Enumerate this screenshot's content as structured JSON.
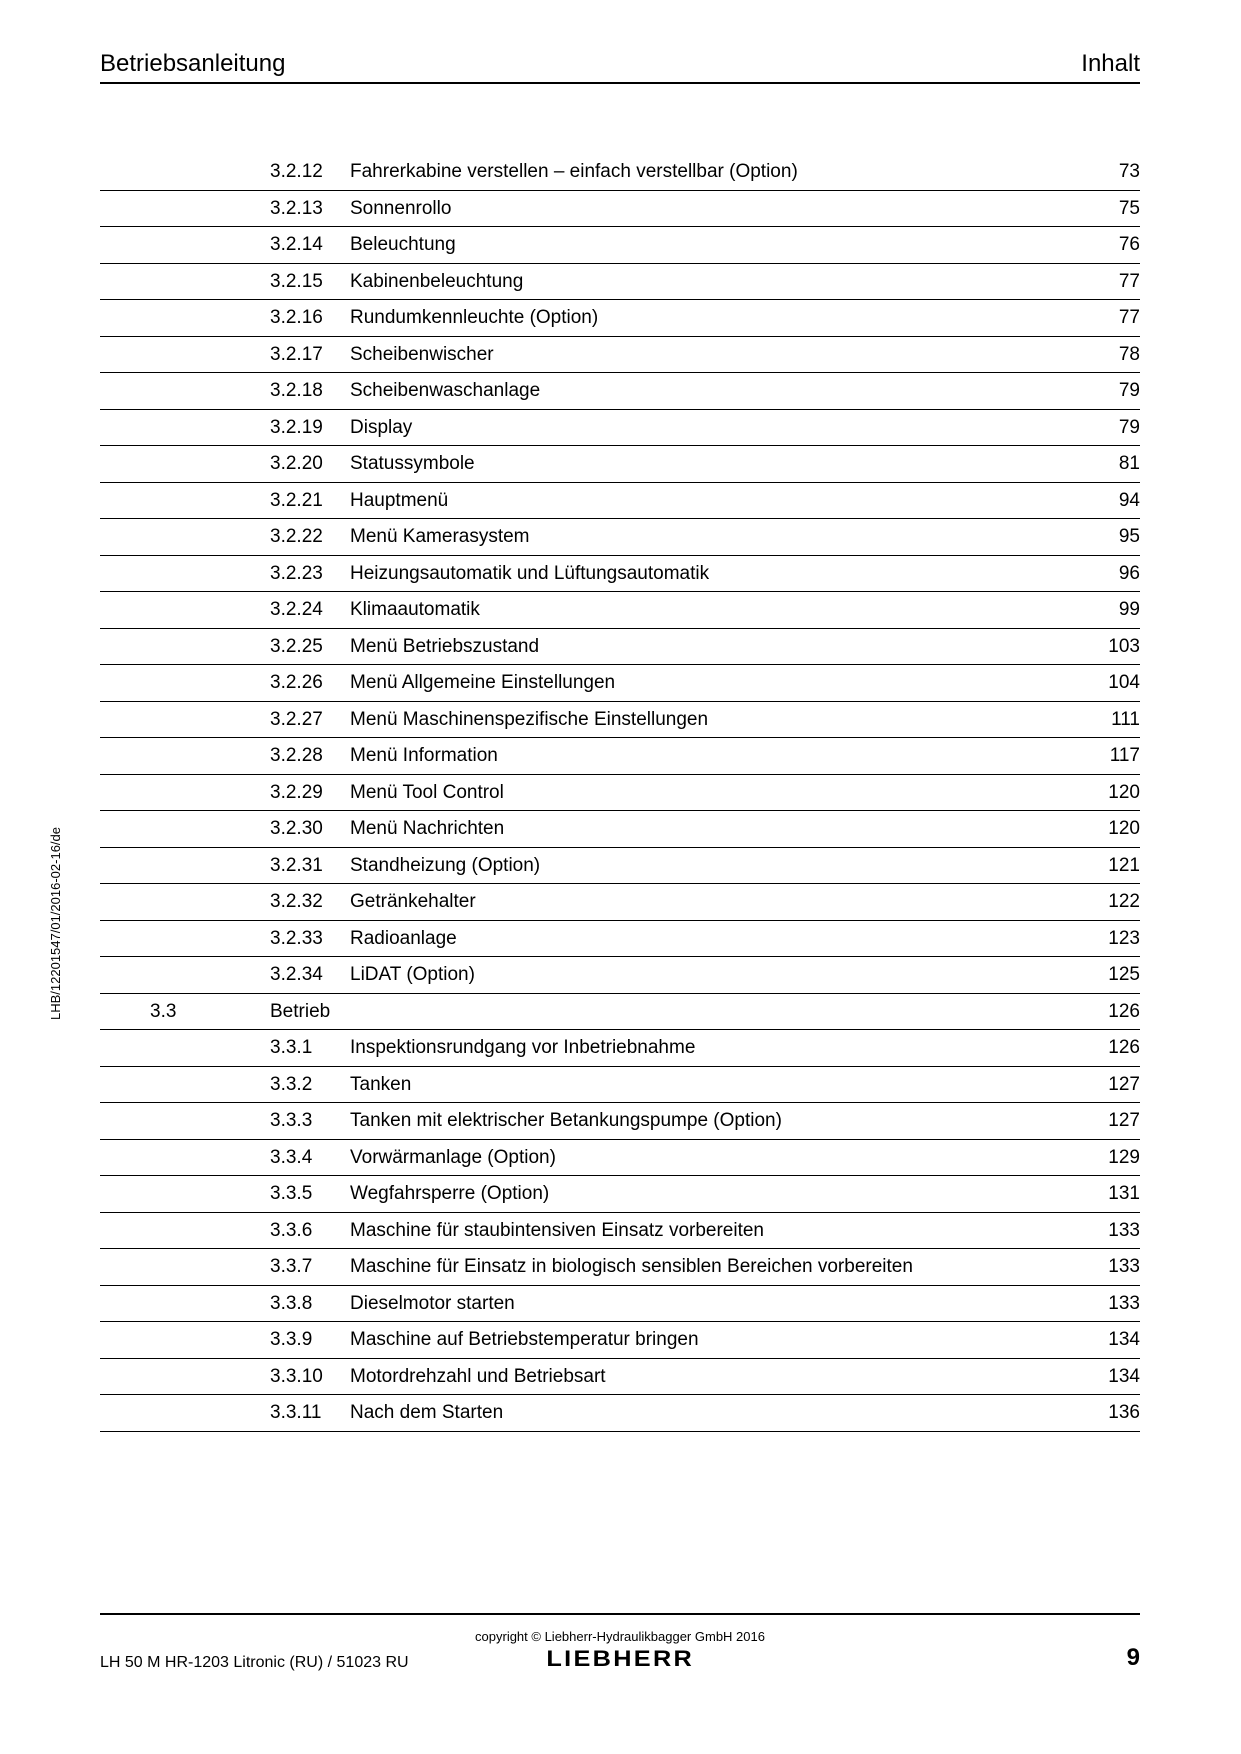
{
  "header": {
    "left": "Betriebsanleitung",
    "right": "Inhalt"
  },
  "side_ref": "LHB/12201547/01/2016-02-16/de",
  "toc": {
    "rows": [
      {
        "section": "",
        "num": "3.2.12",
        "title": "Fahrerkabine verstellen – einfach verstellbar (Option)",
        "page": "73"
      },
      {
        "section": "",
        "num": "3.2.13",
        "title": "Sonnenrollo",
        "page": "75"
      },
      {
        "section": "",
        "num": "3.2.14",
        "title": "Beleuchtung",
        "page": "76"
      },
      {
        "section": "",
        "num": "3.2.15",
        "title": "Kabinenbeleuchtung",
        "page": "77"
      },
      {
        "section": "",
        "num": "3.2.16",
        "title": "Rundumkennleuchte (Option)",
        "page": "77"
      },
      {
        "section": "",
        "num": "3.2.17",
        "title": "Scheibenwischer",
        "page": "78"
      },
      {
        "section": "",
        "num": "3.2.18",
        "title": "Scheibenwaschanlage",
        "page": "79"
      },
      {
        "section": "",
        "num": "3.2.19",
        "title": "Display",
        "page": "79"
      },
      {
        "section": "",
        "num": "3.2.20",
        "title": "Statussymbole",
        "page": "81"
      },
      {
        "section": "",
        "num": "3.2.21",
        "title": "Hauptmenü",
        "page": "94"
      },
      {
        "section": "",
        "num": "3.2.22",
        "title": "Menü Kamerasystem",
        "page": "95"
      },
      {
        "section": "",
        "num": "3.2.23",
        "title": "Heizungsautomatik und Lüftungsautomatik",
        "page": "96"
      },
      {
        "section": "",
        "num": "3.2.24",
        "title": "Klimaautomatik",
        "page": "99"
      },
      {
        "section": "",
        "num": "3.2.25",
        "title": "Menü Betriebszustand",
        "page": "103"
      },
      {
        "section": "",
        "num": "3.2.26",
        "title": "Menü Allgemeine Einstellungen",
        "page": "104"
      },
      {
        "section": "",
        "num": "3.2.27",
        "title": "Menü Maschinenspezifische Einstellungen",
        "page": "111"
      },
      {
        "section": "",
        "num": "3.2.28",
        "title": "Menü Information",
        "page": "117"
      },
      {
        "section": "",
        "num": "3.2.29",
        "title": "Menü Tool Control",
        "page": "120"
      },
      {
        "section": "",
        "num": "3.2.30",
        "title": "Menü Nachrichten",
        "page": "120"
      },
      {
        "section": "",
        "num": "3.2.31",
        "title": "Standheizung (Option)",
        "page": "121"
      },
      {
        "section": "",
        "num": "3.2.32",
        "title": "Getränkehalter",
        "page": "122"
      },
      {
        "section": "",
        "num": "3.2.33",
        "title": "Radioanlage",
        "page": "123"
      },
      {
        "section": "",
        "num": "3.2.34",
        "title": "LiDAT (Option)",
        "page": "125"
      },
      {
        "section": "3.3",
        "num": "Betrieb",
        "title": "",
        "page": "126"
      },
      {
        "section": "",
        "num": "3.3.1",
        "title": "Inspektionsrundgang vor Inbetriebnahme",
        "page": "126"
      },
      {
        "section": "",
        "num": "3.3.2",
        "title": "Tanken",
        "page": "127"
      },
      {
        "section": "",
        "num": "3.3.3",
        "title": "Tanken mit elektrischer Betankungspumpe (Option)",
        "page": "127"
      },
      {
        "section": "",
        "num": "3.3.4",
        "title": "Vorwärmanlage (Option)",
        "page": "129"
      },
      {
        "section": "",
        "num": "3.3.5",
        "title": "Wegfahrsperre (Option)",
        "page": "131"
      },
      {
        "section": "",
        "num": "3.3.6",
        "title": "Maschine für staubintensiven Einsatz vorbereiten",
        "page": "133"
      },
      {
        "section": "",
        "num": "3.3.7",
        "title": "Maschine für Einsatz in biologisch sensiblen Bereichen vorbereiten",
        "page": "133"
      },
      {
        "section": "",
        "num": "3.3.8",
        "title": "Dieselmotor starten",
        "page": "133"
      },
      {
        "section": "",
        "num": "3.3.9",
        "title": "Maschine auf Betriebstemperatur bringen",
        "page": "134"
      },
      {
        "section": "",
        "num": "3.3.10",
        "title": "Motordrehzahl und Betriebsart",
        "page": "134"
      },
      {
        "section": "",
        "num": "3.3.11",
        "title": "Nach dem Starten",
        "page": "136"
      }
    ]
  },
  "footer": {
    "copyright": "copyright © Liebherr-Hydraulikbagger GmbH 2016",
    "brand": "LIEBHERR",
    "doc_id": "LH 50 M HR-1203 Litronic (RU) / 51023 RU",
    "page_num": "9"
  }
}
